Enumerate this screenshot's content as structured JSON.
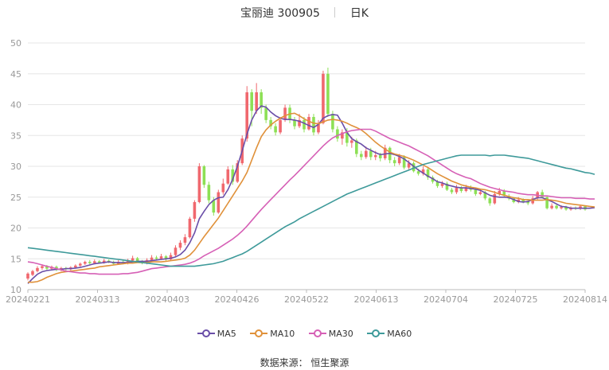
{
  "header": {
    "name": "宝丽迪",
    "code": "300905",
    "period": "日K"
  },
  "source": {
    "label": "数据来源：",
    "provider": "恒生聚源"
  },
  "colors": {
    "up": "#f0686e",
    "down": "#8de055",
    "grid": "#e6e6e6",
    "axis": "#999999"
  },
  "chart_data": {
    "type": "candlestick",
    "title": "宝丽迪 300905",
    "ylim": [
      10,
      50
    ],
    "yticks": [
      10,
      15,
      20,
      25,
      30,
      35,
      40,
      45,
      50
    ],
    "xticks": [
      "20240221",
      "20240313",
      "20240403",
      "20240426",
      "20240522",
      "20240613",
      "20240704",
      "20240725",
      "20240814"
    ],
    "grid": true,
    "legend_position": "bottom",
    "candles": [
      [
        11.8,
        12.6,
        11.5,
        12.8
      ],
      [
        12.4,
        13.0,
        12.2,
        13.2
      ],
      [
        13.0,
        13.5,
        12.8,
        13.8
      ],
      [
        13.5,
        13.8,
        13.2,
        14.1
      ],
      [
        13.8,
        13.4,
        13.2,
        14.0
      ],
      [
        13.4,
        13.7,
        13.1,
        13.9
      ],
      [
        13.7,
        13.2,
        13.0,
        13.9
      ],
      [
        13.2,
        13.5,
        13.0,
        13.7
      ],
      [
        13.5,
        13.3,
        13.1,
        13.7
      ],
      [
        13.3,
        13.6,
        13.1,
        13.8
      ],
      [
        13.6,
        13.9,
        13.4,
        14.1
      ],
      [
        13.9,
        14.2,
        13.7,
        14.4
      ],
      [
        14.2,
        14.5,
        14.0,
        14.7
      ],
      [
        14.5,
        14.3,
        14.1,
        14.8
      ],
      [
        14.3,
        14.6,
        14.1,
        14.9
      ],
      [
        14.6,
        14.4,
        14.2,
        14.8
      ],
      [
        14.4,
        14.7,
        14.2,
        15.0
      ],
      [
        14.7,
        14.5,
        14.3,
        14.9
      ],
      [
        14.5,
        14.2,
        14.0,
        14.7
      ],
      [
        14.2,
        14.5,
        14.0,
        14.8
      ],
      [
        14.5,
        14.3,
        14.1,
        14.7
      ],
      [
        14.3,
        14.7,
        14.1,
        15.0
      ],
      [
        14.7,
        15.1,
        14.5,
        15.5
      ],
      [
        15.1,
        14.6,
        14.4,
        15.3
      ],
      [
        14.6,
        14.3,
        14.1,
        14.8
      ],
      [
        14.3,
        14.8,
        14.1,
        15.1
      ],
      [
        14.8,
        15.2,
        14.6,
        15.6
      ],
      [
        15.2,
        15.0,
        14.8,
        15.5
      ],
      [
        15.0,
        15.4,
        14.8,
        15.8
      ],
      [
        15.4,
        14.9,
        14.7,
        15.6
      ],
      [
        14.9,
        15.6,
        14.7,
        16.0
      ],
      [
        15.6,
        16.8,
        15.4,
        17.2
      ],
      [
        16.8,
        17.6,
        16.4,
        18.0
      ],
      [
        17.6,
        18.5,
        17.2,
        19.0
      ],
      [
        18.5,
        21.5,
        18.3,
        21.8
      ],
      [
        21.5,
        24.2,
        21.0,
        24.5
      ],
      [
        24.2,
        30.0,
        24.0,
        30.5
      ],
      [
        30.0,
        27.0,
        26.5,
        30.2
      ],
      [
        27.0,
        24.5,
        24.0,
        27.5
      ],
      [
        24.5,
        22.5,
        22.0,
        25.0
      ],
      [
        22.5,
        25.8,
        22.3,
        26.2
      ],
      [
        25.8,
        27.2,
        25.4,
        28.0
      ],
      [
        27.2,
        29.5,
        27.0,
        30.0
      ],
      [
        29.5,
        27.5,
        27.0,
        30.2
      ],
      [
        27.5,
        30.5,
        27.3,
        31.0
      ],
      [
        30.5,
        34.5,
        30.2,
        35.0
      ],
      [
        34.5,
        42.0,
        34.0,
        43.0
      ],
      [
        42.0,
        39.0,
        36.5,
        42.5
      ],
      [
        39.0,
        42.0,
        38.5,
        43.5
      ],
      [
        42.0,
        39.5,
        38.5,
        42.5
      ],
      [
        39.5,
        37.5,
        37.0,
        40.0
      ],
      [
        37.5,
        36.5,
        36.0,
        38.0
      ],
      [
        36.5,
        35.5,
        35.0,
        37.0
      ],
      [
        35.5,
        37.5,
        35.2,
        38.0
      ],
      [
        37.5,
        39.5,
        37.2,
        40.0
      ],
      [
        39.5,
        37.5,
        37.0,
        40.0
      ],
      [
        37.5,
        36.5,
        36.0,
        38.0
      ],
      [
        36.5,
        37.5,
        36.2,
        38.5
      ],
      [
        37.5,
        36.0,
        35.5,
        38.0
      ],
      [
        36.0,
        38.0,
        35.8,
        38.5
      ],
      [
        38.0,
        35.5,
        35.0,
        38.5
      ],
      [
        35.5,
        37.0,
        35.2,
        37.5
      ],
      [
        37.0,
        45.0,
        36.8,
        45.5
      ],
      [
        45.0,
        38.5,
        38.0,
        46.0
      ],
      [
        38.5,
        36.0,
        35.5,
        39.0
      ],
      [
        36.0,
        34.5,
        34.0,
        36.5
      ],
      [
        34.5,
        35.5,
        33.5,
        36.0
      ],
      [
        35.5,
        33.8,
        33.2,
        36.2
      ],
      [
        33.8,
        34.2,
        33.0,
        34.8
      ],
      [
        34.2,
        32.0,
        31.5,
        34.5
      ],
      [
        32.0,
        31.5,
        31.0,
        32.5
      ],
      [
        31.5,
        32.5,
        31.2,
        33.2
      ],
      [
        32.5,
        31.5,
        31.0,
        33.0
      ],
      [
        31.5,
        31.8,
        31.0,
        32.5
      ],
      [
        31.8,
        31.3,
        30.8,
        32.2
      ],
      [
        31.3,
        33.0,
        31.0,
        33.5
      ],
      [
        33.0,
        31.0,
        30.5,
        33.2
      ],
      [
        31.0,
        30.5,
        30.0,
        31.5
      ],
      [
        30.5,
        31.5,
        30.2,
        32.0
      ],
      [
        31.5,
        29.8,
        29.5,
        31.8
      ],
      [
        29.8,
        30.5,
        29.5,
        31.0
      ],
      [
        30.5,
        29.2,
        29.0,
        30.8
      ],
      [
        29.2,
        28.8,
        28.5,
        29.6
      ],
      [
        28.8,
        29.5,
        28.5,
        30.0
      ],
      [
        29.5,
        28.2,
        27.8,
        29.8
      ],
      [
        28.2,
        27.5,
        27.2,
        28.5
      ],
      [
        27.5,
        26.8,
        26.5,
        27.8
      ],
      [
        26.8,
        27.2,
        26.5,
        27.6
      ],
      [
        27.2,
        26.2,
        26.0,
        27.5
      ],
      [
        26.2,
        25.8,
        25.5,
        26.5
      ],
      [
        25.8,
        26.5,
        25.5,
        27.0
      ],
      [
        26.5,
        26.0,
        25.7,
        26.8
      ],
      [
        26.0,
        26.6,
        25.8,
        27.0
      ],
      [
        26.6,
        26.2,
        25.9,
        26.9
      ],
      [
        26.2,
        25.5,
        25.2,
        26.5
      ],
      [
        25.5,
        25.8,
        25.3,
        26.2
      ],
      [
        25.8,
        24.8,
        24.5,
        26.0
      ],
      [
        24.8,
        24.0,
        23.6,
        25.0
      ],
      [
        24.0,
        25.5,
        23.8,
        26.0
      ],
      [
        25.5,
        26.0,
        25.2,
        26.5
      ],
      [
        26.0,
        25.2,
        25.0,
        26.3
      ],
      [
        25.2,
        24.8,
        24.5,
        25.5
      ],
      [
        24.8,
        24.2,
        24.0,
        25.0
      ],
      [
        24.2,
        24.6,
        24.0,
        25.0
      ],
      [
        24.6,
        24.3,
        24.0,
        24.8
      ],
      [
        24.3,
        24.0,
        23.7,
        24.6
      ],
      [
        24.0,
        24.8,
        23.8,
        25.2
      ],
      [
        24.8,
        25.8,
        24.6,
        26.0
      ],
      [
        25.8,
        25.0,
        24.8,
        26.2
      ],
      [
        25.0,
        23.2,
        23.0,
        25.2
      ],
      [
        23.2,
        23.6,
        23.0,
        24.0
      ],
      [
        23.6,
        23.2,
        23.0,
        23.8
      ],
      [
        23.2,
        23.4,
        23.0,
        23.7
      ],
      [
        23.4,
        23.0,
        22.8,
        23.6
      ],
      [
        23.0,
        23.3,
        22.8,
        23.5
      ],
      [
        23.3,
        23.1,
        22.9,
        23.5
      ],
      [
        23.1,
        23.5,
        22.9,
        23.8
      ],
      [
        23.5,
        23.0,
        22.8,
        23.6
      ]
    ],
    "series": [
      {
        "name": "MA5",
        "color": "#6a4ea8",
        "values": [
          11.0,
          11.8,
          12.5,
          12.9,
          13.1,
          13.2,
          13.3,
          13.3,
          13.4,
          13.4,
          13.5,
          13.6,
          13.8,
          14.0,
          14.2,
          14.3,
          14.4,
          14.5,
          14.4,
          14.4,
          14.4,
          14.4,
          14.5,
          14.6,
          14.6,
          14.6,
          14.7,
          14.8,
          14.9,
          15.0,
          15.1,
          15.3,
          15.7,
          16.4,
          17.6,
          19.2,
          21.5,
          22.7,
          23.8,
          24.5,
          24.9,
          25.0,
          26.2,
          27.9,
          30.0,
          32.5,
          35.2,
          37.5,
          39.0,
          39.8,
          39.6,
          38.8,
          38.2,
          37.8,
          37.6,
          37.6,
          37.5,
          37.3,
          37.0,
          36.6,
          36.3,
          36.8,
          37.8,
          38.2,
          38.4,
          38.3,
          37.0,
          35.5,
          34.5,
          34.0,
          33.6,
          33.0,
          32.6,
          32.2,
          31.9,
          32.0,
          32.1,
          31.9,
          31.6,
          31.2,
          30.6,
          30.0,
          29.4,
          28.9,
          28.4,
          28.0,
          27.5,
          27.3,
          27.0,
          26.8,
          26.6,
          26.5,
          26.5,
          26.4,
          26.3,
          26.1,
          25.7,
          25.3,
          25.1,
          25.0,
          25.0,
          24.9,
          24.6,
          24.3,
          24.2,
          24.3,
          24.6,
          24.9,
          24.9,
          24.6,
          24.3,
          23.9,
          23.5,
          23.4,
          23.2,
          23.2,
          23.2,
          23.2,
          23.2,
          23.3
        ]
      },
      {
        "name": "MA10",
        "color": "#e0913a",
        "values": [
          11.2,
          11.2,
          11.3,
          11.6,
          12.0,
          12.3,
          12.6,
          12.8,
          12.9,
          13.0,
          13.1,
          13.2,
          13.3,
          13.4,
          13.5,
          13.7,
          13.8,
          13.9,
          14.0,
          14.1,
          14.2,
          14.3,
          14.3,
          14.4,
          14.4,
          14.4,
          14.5,
          14.5,
          14.5,
          14.6,
          14.7,
          14.8,
          14.9,
          15.1,
          15.6,
          16.4,
          17.5,
          18.6,
          19.6,
          20.6,
          21.6,
          22.8,
          24.0,
          25.2,
          26.4,
          27.6,
          29.0,
          31.0,
          33.0,
          34.8,
          35.9,
          36.7,
          37.3,
          37.8,
          38.2,
          38.5,
          38.6,
          38.2,
          37.7,
          37.3,
          37.0,
          36.9,
          37.2,
          37.5,
          37.6,
          37.5,
          37.3,
          37.0,
          36.6,
          36.3,
          35.9,
          35.3,
          34.6,
          33.9,
          33.3,
          32.8,
          32.3,
          32.0,
          31.8,
          31.6,
          31.3,
          31.0,
          30.6,
          30.2,
          29.8,
          29.3,
          28.8,
          28.4,
          28.0,
          27.6,
          27.3,
          27.0,
          26.8,
          26.6,
          26.5,
          26.3,
          26.2,
          26.0,
          25.8,
          25.5,
          25.3,
          25.1,
          24.9,
          24.8,
          24.6,
          24.6,
          24.5,
          24.5,
          24.5,
          24.6,
          24.5,
          24.4,
          24.2,
          24.0,
          23.9,
          23.8,
          23.7,
          23.6,
          23.5,
          23.4
        ]
      },
      {
        "name": "MA30",
        "color": "#d660b6",
        "values": [
          14.5,
          14.4,
          14.2,
          14.0,
          13.8,
          13.6,
          13.4,
          13.2,
          13.0,
          12.9,
          12.8,
          12.7,
          12.7,
          12.6,
          12.6,
          12.5,
          12.5,
          12.5,
          12.5,
          12.5,
          12.6,
          12.6,
          12.7,
          12.8,
          13.0,
          13.2,
          13.4,
          13.5,
          13.6,
          13.7,
          13.8,
          13.9,
          14.0,
          14.1,
          14.3,
          14.6,
          15.0,
          15.5,
          15.9,
          16.3,
          16.7,
          17.2,
          17.7,
          18.2,
          18.8,
          19.5,
          20.3,
          21.2,
          22.1,
          23.0,
          23.8,
          24.6,
          25.4,
          26.2,
          27.0,
          27.8,
          28.5,
          29.3,
          30.1,
          30.9,
          31.7,
          32.5,
          33.3,
          34.0,
          34.6,
          35.0,
          35.3,
          35.6,
          35.8,
          35.9,
          36.0,
          36.0,
          36.0,
          35.7,
          35.3,
          34.9,
          34.5,
          34.2,
          33.9,
          33.6,
          33.3,
          32.9,
          32.5,
          32.1,
          31.7,
          31.2,
          30.7,
          30.2,
          29.7,
          29.2,
          28.8,
          28.5,
          28.2,
          28.0,
          27.6,
          27.2,
          26.9,
          26.6,
          26.4,
          26.2,
          26.0,
          25.9,
          25.8,
          25.6,
          25.5,
          25.4,
          25.4,
          25.3,
          25.2,
          25.2,
          25.1,
          25.0,
          24.9,
          24.9,
          24.9,
          24.8,
          24.8,
          24.8,
          24.7,
          24.7
        ]
      },
      {
        "name": "MA60",
        "color": "#3e9a9a",
        "values": [
          16.8,
          16.7,
          16.6,
          16.5,
          16.4,
          16.3,
          16.2,
          16.1,
          16.0,
          15.9,
          15.8,
          15.7,
          15.6,
          15.5,
          15.4,
          15.3,
          15.2,
          15.1,
          15.0,
          14.9,
          14.8,
          14.7,
          14.6,
          14.5,
          14.4,
          14.3,
          14.2,
          14.1,
          14.0,
          13.9,
          13.8,
          13.8,
          13.8,
          13.8,
          13.8,
          13.8,
          13.9,
          14.0,
          14.1,
          14.2,
          14.4,
          14.6,
          14.9,
          15.2,
          15.5,
          15.8,
          16.2,
          16.7,
          17.2,
          17.7,
          18.2,
          18.7,
          19.2,
          19.7,
          20.2,
          20.6,
          21.0,
          21.5,
          21.9,
          22.3,
          22.7,
          23.1,
          23.5,
          23.9,
          24.3,
          24.7,
          25.1,
          25.5,
          25.8,
          26.1,
          26.4,
          26.7,
          27.0,
          27.3,
          27.6,
          27.9,
          28.2,
          28.5,
          28.8,
          29.1,
          29.4,
          29.7,
          30.0,
          30.3,
          30.5,
          30.7,
          30.9,
          31.1,
          31.3,
          31.5,
          31.7,
          31.8,
          31.8,
          31.8,
          31.8,
          31.8,
          31.8,
          31.7,
          31.8,
          31.8,
          31.8,
          31.7,
          31.6,
          31.5,
          31.4,
          31.3,
          31.1,
          30.9,
          30.7,
          30.5,
          30.3,
          30.1,
          29.9,
          29.7,
          29.6,
          29.4,
          29.2,
          29.0,
          28.9,
          28.7
        ]
      }
    ]
  }
}
